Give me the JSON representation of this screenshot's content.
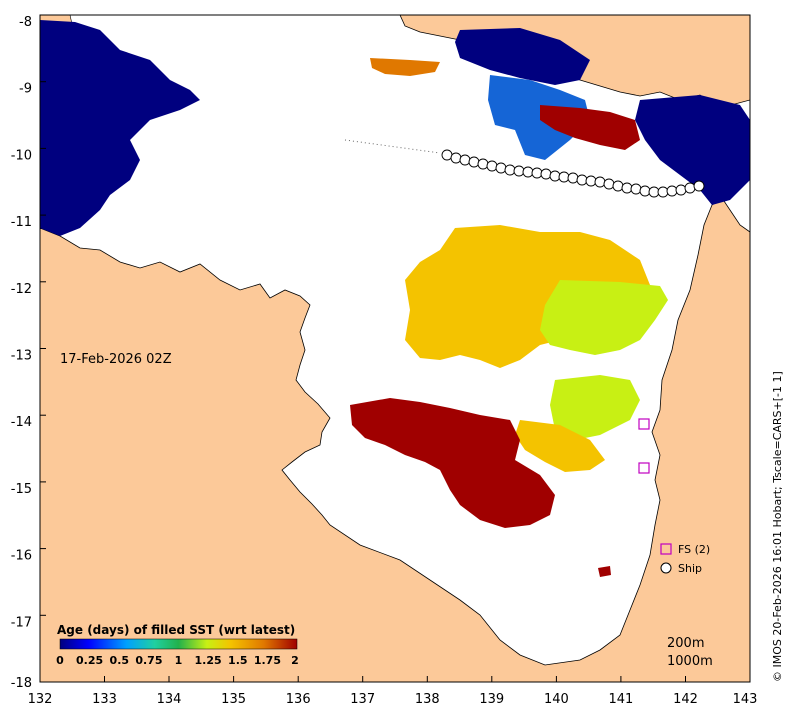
{
  "map": {
    "date_label": "17-Feb-2026 02Z",
    "credit": "© IMOS 20-Feb-2026 16:01 Hobart; Tscale=CARS+[-1 1]",
    "x_ticks": [
      "132",
      "133",
      "134",
      "135",
      "136",
      "137",
      "138",
      "139",
      "140",
      "141",
      "142",
      "143"
    ],
    "y_ticks": [
      "-8",
      "-9",
      "-10",
      "-11",
      "-12",
      "-13",
      "-14",
      "-15",
      "-16",
      "-17",
      "-18"
    ],
    "colorbar": {
      "title": "Age (days) of filled SST (wrt latest)",
      "ticks": [
        "0",
        "0.25",
        "0.5",
        "0.75",
        "1",
        "1.25",
        "1.5",
        "1.75",
        "2"
      ]
    },
    "legend": {
      "fs_label": "FS (2)",
      "ship_label": "Ship"
    },
    "contours": [
      "200m",
      "1000m"
    ],
    "colors": {
      "land": "#fcc999",
      "sea": "#ffffff",
      "age_0": "#00007f",
      "age_0_5": "#1565d6",
      "age_1": "#22b14c",
      "age_1_25": "#c8f014",
      "age_1_5": "#f4c300",
      "age_1_75": "#e07800",
      "age_2": "#a00000",
      "fs_marker": "#c000c0"
    }
  }
}
